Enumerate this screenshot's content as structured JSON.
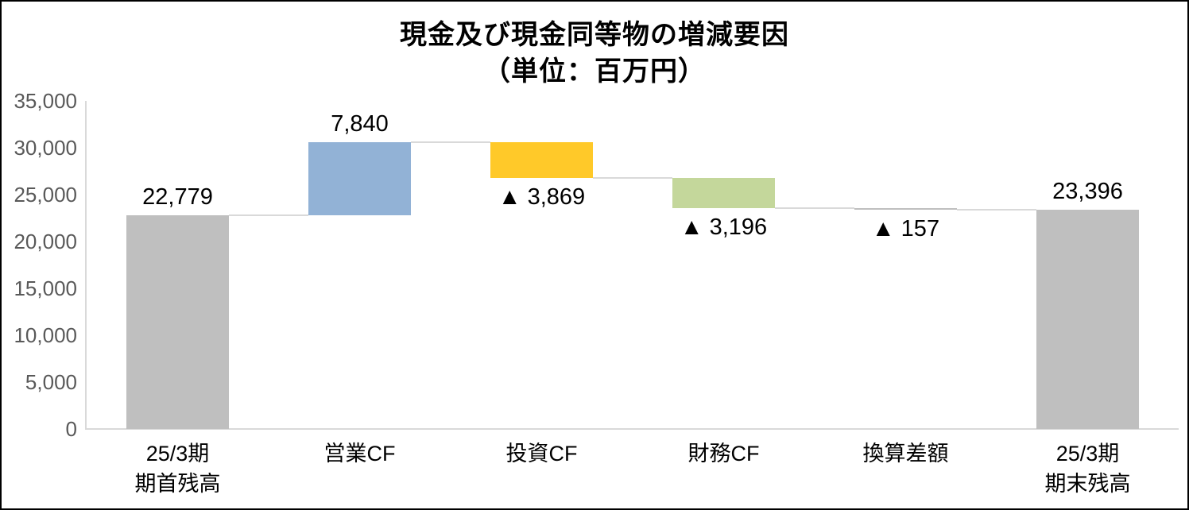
{
  "chart_data": {
    "type": "bar",
    "subtype": "waterfall",
    "title": "現金及び現金同等物の増減要因",
    "subtitle": "（単位：百万円）",
    "unit": "百万円",
    "grid": false,
    "legend": "none",
    "y_axis": {
      "min": 0,
      "max": 35000,
      "step": 5000,
      "tick_labels": [
        "0",
        "5,000",
        "10,000",
        "15,000",
        "20,000",
        "25,000",
        "30,000",
        "35,000"
      ],
      "tick_label_color": "#595959"
    },
    "categories": [
      "25/3期 期首残高",
      "営業CF",
      "投資CF",
      "財務CF",
      "換算差額",
      "25/3期 期末残高"
    ],
    "bars": [
      {
        "category_lines": [
          "25/3期",
          "期首残高"
        ],
        "data_label": "22,779",
        "value": 22779,
        "start": 0,
        "end": 22779,
        "color": "#bfbfbf",
        "label_side": "above"
      },
      {
        "category_lines": [
          "営業CF"
        ],
        "data_label": "7,840",
        "value": 7840,
        "start": 22779,
        "end": 30619,
        "color": "#92b2d6",
        "label_side": "above"
      },
      {
        "category_lines": [
          "投資CF"
        ],
        "data_label": "▲ 3,869",
        "value": -3869,
        "start": 30619,
        "end": 26750,
        "color": "#ffc929",
        "label_side": "below"
      },
      {
        "category_lines": [
          "財務CF"
        ],
        "data_label": "▲ 3,196",
        "value": -3196,
        "start": 26750,
        "end": 23554,
        "color": "#c4d79b",
        "label_side": "below"
      },
      {
        "category_lines": [
          "換算差額"
        ],
        "data_label": "▲ 157",
        "value": -157,
        "start": 23554,
        "end": 23397,
        "color": "#bfbfbf",
        "label_side": "below"
      },
      {
        "category_lines": [
          "25/3期",
          "期末残高"
        ],
        "data_label": "23,396",
        "value": 23396,
        "start": 0,
        "end": 23396,
        "color": "#bfbfbf",
        "label_side": "above"
      }
    ],
    "colors": {
      "balance_bar": "#bfbfbf",
      "operating_cf_bar": "#92b2d6",
      "investing_cf_bar": "#ffc929",
      "financing_cf_bar": "#c4d79b",
      "connector": "#d9d9d9",
      "axis": "#d9d9d9",
      "data_label_text": "#000000"
    }
  }
}
